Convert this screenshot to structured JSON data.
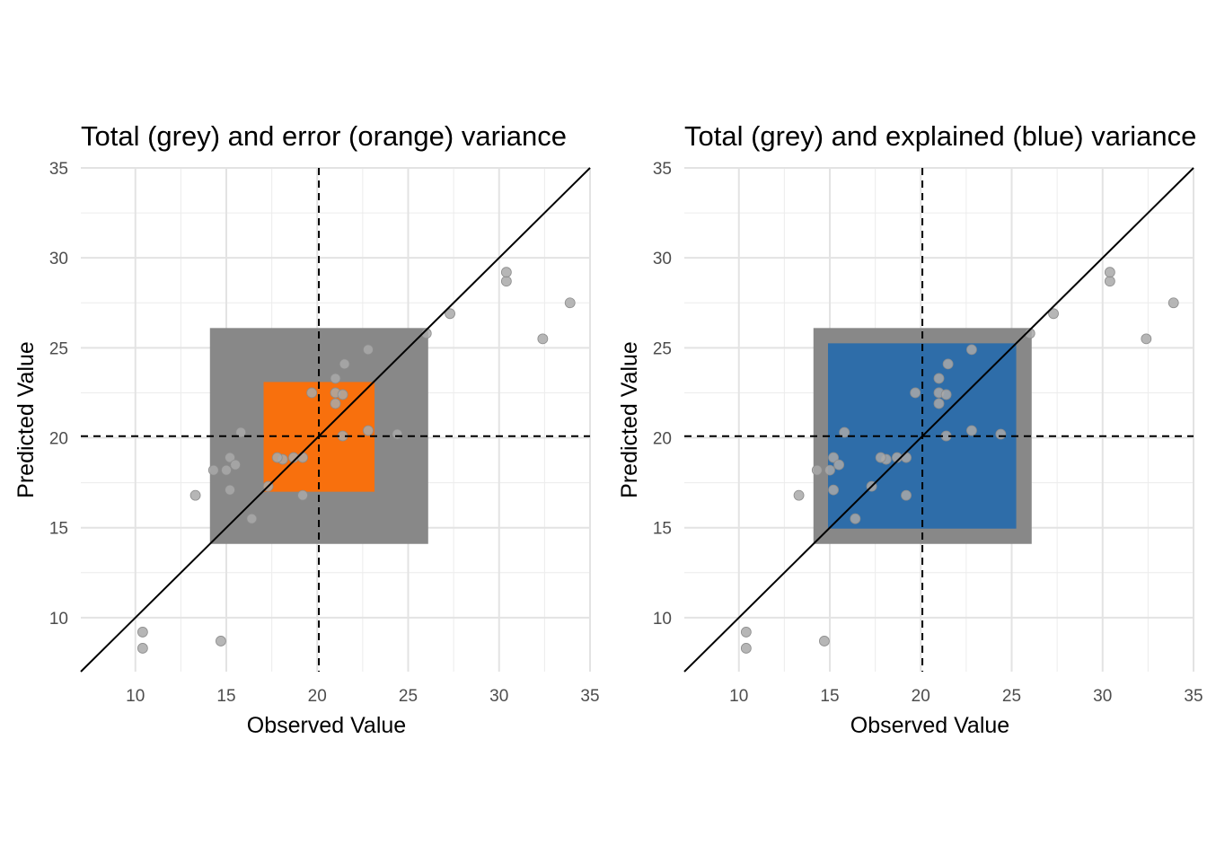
{
  "chart_data": [
    {
      "type": "scatter",
      "title": "Total (grey) and error (orange) variance",
      "xlabel": "Observed Value",
      "ylabel": "Predicted Value",
      "xlim": [
        7,
        35
      ],
      "ylim": [
        7,
        35
      ],
      "xticks": [
        10,
        15,
        20,
        25,
        30,
        35
      ],
      "yticks": [
        10,
        15,
        20,
        25,
        30,
        35
      ],
      "grid": true,
      "reference_lines": {
        "x_mean": 20.09,
        "y_mean": 20.09,
        "identity": "y = x"
      },
      "total_variance_square": {
        "xmin": 14.1,
        "xmax": 26.1,
        "ymin": 14.1,
        "ymax": 26.1,
        "color": "#888888"
      },
      "inner_square": {
        "label": "error",
        "xmin": 17.05,
        "xmax": 23.15,
        "ymin": 17.0,
        "ymax": 23.1,
        "color": "#F8700D"
      },
      "points": [
        {
          "x": 21.0,
          "y": 22.5
        },
        {
          "x": 21.0,
          "y": 21.9
        },
        {
          "x": 22.8,
          "y": 24.9
        },
        {
          "x": 21.4,
          "y": 20.1
        },
        {
          "x": 18.7,
          "y": 18.9
        },
        {
          "x": 18.1,
          "y": 18.8
        },
        {
          "x": 14.3,
          "y": 18.2
        },
        {
          "x": 24.4,
          "y": 20.2
        },
        {
          "x": 22.8,
          "y": 20.4
        },
        {
          "x": 19.2,
          "y": 18.9
        },
        {
          "x": 17.8,
          "y": 18.9
        },
        {
          "x": 16.4,
          "y": 15.5
        },
        {
          "x": 17.3,
          "y": 17.3
        },
        {
          "x": 15.2,
          "y": 18.9
        },
        {
          "x": 10.4,
          "y": 8.3
        },
        {
          "x": 10.4,
          "y": 9.2
        },
        {
          "x": 14.7,
          "y": 8.7
        },
        {
          "x": 32.4,
          "y": 25.5
        },
        {
          "x": 30.4,
          "y": 28.7
        },
        {
          "x": 33.9,
          "y": 27.5
        },
        {
          "x": 21.5,
          "y": 24.1
        },
        {
          "x": 15.5,
          "y": 18.5
        },
        {
          "x": 15.2,
          "y": 17.1
        },
        {
          "x": 13.3,
          "y": 16.8
        },
        {
          "x": 19.2,
          "y": 16.8
        },
        {
          "x": 27.3,
          "y": 26.9
        },
        {
          "x": 26.0,
          "y": 25.8
        },
        {
          "x": 30.4,
          "y": 29.2
        },
        {
          "x": 15.8,
          "y": 20.3
        },
        {
          "x": 19.7,
          "y": 22.5
        },
        {
          "x": 15.0,
          "y": 18.2
        },
        {
          "x": 21.4,
          "y": 22.4
        },
        {
          "x": 21.0,
          "y": 23.3
        }
      ],
      "point_color": "#A9A9A9"
    },
    {
      "type": "scatter",
      "title": "Total (grey) and explained (blue) variance",
      "xlabel": "Observed Value",
      "ylabel": "Predicted Value",
      "xlim": [
        7,
        35
      ],
      "ylim": [
        7,
        35
      ],
      "xticks": [
        10,
        15,
        20,
        25,
        30,
        35
      ],
      "yticks": [
        10,
        15,
        20,
        25,
        30,
        35
      ],
      "grid": true,
      "reference_lines": {
        "x_mean": 20.09,
        "y_mean": 20.09,
        "identity": "y = x"
      },
      "total_variance_square": {
        "xmin": 14.1,
        "xmax": 26.1,
        "ymin": 14.1,
        "ymax": 26.1,
        "color": "#888888"
      },
      "inner_square": {
        "label": "explained",
        "xmin": 14.9,
        "xmax": 25.25,
        "ymin": 14.95,
        "ymax": 25.25,
        "color": "#2E6DA9"
      },
      "points": [
        {
          "x": 21.0,
          "y": 22.5
        },
        {
          "x": 21.0,
          "y": 21.9
        },
        {
          "x": 22.8,
          "y": 24.9
        },
        {
          "x": 21.4,
          "y": 20.1
        },
        {
          "x": 18.7,
          "y": 18.9
        },
        {
          "x": 18.1,
          "y": 18.8
        },
        {
          "x": 14.3,
          "y": 18.2
        },
        {
          "x": 24.4,
          "y": 20.2
        },
        {
          "x": 22.8,
          "y": 20.4
        },
        {
          "x": 19.2,
          "y": 18.9
        },
        {
          "x": 17.8,
          "y": 18.9
        },
        {
          "x": 16.4,
          "y": 15.5
        },
        {
          "x": 17.3,
          "y": 17.3
        },
        {
          "x": 15.2,
          "y": 18.9
        },
        {
          "x": 10.4,
          "y": 8.3
        },
        {
          "x": 10.4,
          "y": 9.2
        },
        {
          "x": 14.7,
          "y": 8.7
        },
        {
          "x": 32.4,
          "y": 25.5
        },
        {
          "x": 30.4,
          "y": 28.7
        },
        {
          "x": 33.9,
          "y": 27.5
        },
        {
          "x": 21.5,
          "y": 24.1
        },
        {
          "x": 15.5,
          "y": 18.5
        },
        {
          "x": 15.2,
          "y": 17.1
        },
        {
          "x": 13.3,
          "y": 16.8
        },
        {
          "x": 19.2,
          "y": 16.8
        },
        {
          "x": 27.3,
          "y": 26.9
        },
        {
          "x": 26.0,
          "y": 25.8
        },
        {
          "x": 30.4,
          "y": 29.2
        },
        {
          "x": 15.8,
          "y": 20.3
        },
        {
          "x": 19.7,
          "y": 22.5
        },
        {
          "x": 15.0,
          "y": 18.2
        },
        {
          "x": 21.4,
          "y": 22.4
        },
        {
          "x": 21.0,
          "y": 23.3
        }
      ],
      "point_color": "#A9A9A9"
    }
  ]
}
